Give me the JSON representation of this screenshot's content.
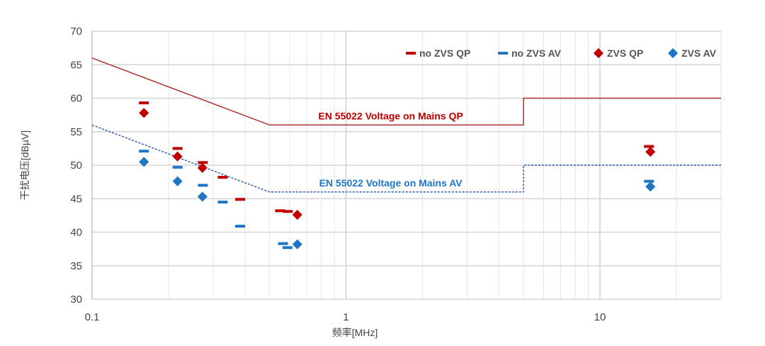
{
  "chart_data": {
    "type": "scatter",
    "xlabel": "频率[MHz]",
    "ylabel": "干扰电压[dBµV]",
    "xscale": "log",
    "xlim": [
      0.1,
      30
    ],
    "ylim": [
      30,
      70
    ],
    "xticks": [
      {
        "v": 0.1,
        "t": "0.1"
      },
      {
        "v": 1,
        "t": "1"
      },
      {
        "v": 10,
        "t": "10"
      }
    ],
    "yticks": [
      30,
      35,
      40,
      45,
      50,
      55,
      60,
      65,
      70
    ],
    "grid": true,
    "legend": "top-right",
    "colors": {
      "qp": "#c00000",
      "av": "#1f77c4",
      "limit_qp": "#b03030",
      "limit_av": "#2e5fa8"
    },
    "series": [
      {
        "name": "no ZVS QP",
        "marker": "dash",
        "color": "#c00000",
        "x": [
          0.16,
          0.217,
          0.273,
          0.327,
          0.383,
          0.55,
          0.59,
          15.6
        ],
        "y": [
          59.3,
          52.5,
          50.4,
          48.2,
          44.9,
          43.2,
          43.1,
          52.8
        ]
      },
      {
        "name": "no ZVS AV",
        "marker": "dash",
        "color": "#1f77c4",
        "x": [
          0.16,
          0.217,
          0.273,
          0.327,
          0.383,
          0.565,
          0.588,
          15.6
        ],
        "y": [
          52.1,
          49.7,
          47.0,
          44.5,
          40.9,
          38.3,
          37.7,
          47.6
        ]
      },
      {
        "name": "ZVS QP",
        "marker": "diamond",
        "color": "#c00000",
        "x": [
          0.16,
          0.217,
          0.272,
          0.643,
          15.8
        ],
        "y": [
          57.8,
          51.3,
          49.6,
          42.6,
          52.0
        ]
      },
      {
        "name": "ZVS AV",
        "marker": "diamond",
        "color": "#1f77c4",
        "x": [
          0.16,
          0.217,
          0.272,
          0.643,
          15.8
        ],
        "y": [
          50.5,
          47.6,
          45.3,
          38.2,
          46.8
        ]
      }
    ],
    "limits": [
      {
        "name": "EN 55022 Voltage on Mains QP",
        "style": "solid",
        "color": "#b03030",
        "x": [
          0.1,
          0.5,
          5,
          5,
          30
        ],
        "y": [
          66,
          56,
          56,
          60,
          60
        ]
      },
      {
        "name": "EN 55022 Voltage on Mains AV",
        "style": "dotted",
        "color": "#2e5fa8",
        "x": [
          0.1,
          0.5,
          5,
          5,
          30
        ],
        "y": [
          56,
          46,
          46,
          50,
          50
        ]
      }
    ]
  }
}
